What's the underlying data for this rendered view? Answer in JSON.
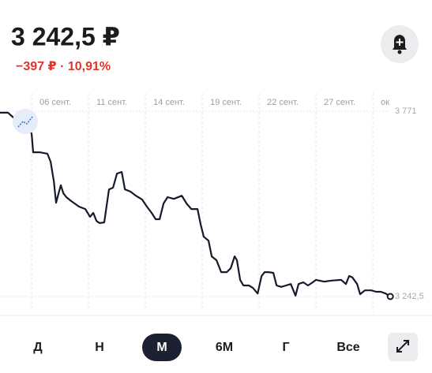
{
  "header": {
    "price": "3 242,5 ₽",
    "change": "−397 ₽ · 10,91%"
  },
  "chart_data": {
    "type": "line",
    "x": [
      -0.67,
      -0.25,
      0.08,
      0.33,
      0.58,
      0.83,
      1,
      1.08,
      1.42,
      1.83,
      2,
      2.17,
      2.29,
      2.42,
      2.54,
      2.67,
      2.83,
      3.08,
      3.5,
      3.83,
      4.08,
      4.25,
      4.42,
      4.58,
      4.83,
      4.96,
      5.08,
      5.29,
      5.5,
      5.75,
      5.92,
      6.21,
      6.5,
      6.83,
      7.08,
      7.33,
      7.54,
      7.75,
      7.96,
      8.17,
      8.5,
      8.92,
      9.17,
      9.42,
      9.75,
      9.92,
      10.08,
      10.33,
      10.5,
      10.75,
      11,
      11.29,
      11.5,
      11.71,
      11.83,
      12,
      12.17,
      12.46,
      12.67,
      12.92,
      13.13,
      13.29,
      13.5,
      13.75,
      13.92,
      14.17,
      14.42,
      14.67,
      14.92,
      15.08,
      15.33,
      15.58,
      15.83,
      16,
      16.42,
      16.83,
      17.33,
      17.58,
      17.75,
      17.92,
      18.17,
      18.33,
      18.58,
      18.92,
      19.17,
      19.42,
      19.67,
      19.92
    ],
    "series": [
      {
        "color": "#161b2b",
        "values": [
          3767,
          3767,
          3751,
          3740,
          3744,
          3733,
          3706,
          3654,
          3654,
          3650,
          3627,
          3571,
          3510,
          3537,
          3560,
          3537,
          3526,
          3515,
          3499,
          3492,
          3470,
          3481,
          3458,
          3452,
          3454,
          3503,
          3548,
          3553,
          3593,
          3598,
          3548,
          3542,
          3530,
          3519,
          3499,
          3481,
          3463,
          3463,
          3508,
          3526,
          3521,
          3530,
          3508,
          3492,
          3492,
          3447,
          3413,
          3402,
          3357,
          3346,
          3312,
          3312,
          3323,
          3357,
          3346,
          3290,
          3274,
          3274,
          3267,
          3251,
          3301,
          3312,
          3312,
          3310,
          3274,
          3270,
          3274,
          3278,
          3245,
          3278,
          3283,
          3274,
          3283,
          3290,
          3285,
          3288,
          3290,
          3278,
          3301,
          3297,
          3278,
          3249,
          3260,
          3260,
          3256,
          3256,
          3251,
          3242.5
        ]
      }
    ],
    "xlim": [
      -0.67,
      22.12
    ],
    "xticks": [
      {
        "value": 1,
        "label": "06 сент."
      },
      {
        "value": 4,
        "label": "11 сент."
      },
      {
        "value": 7,
        "label": "14 сент."
      },
      {
        "value": 10,
        "label": "19 сент."
      },
      {
        "value": 13,
        "label": "22 сент."
      },
      {
        "value": 16,
        "label": "27 сент."
      },
      {
        "value": 19,
        "label": "ок"
      }
    ],
    "ylim": [
      3193,
      3823
    ],
    "yticks": [
      {
        "value": 3771,
        "label": "3 771"
      },
      {
        "value": 3242.5,
        "label": "3 242,5"
      }
    ],
    "grid": true
  },
  "periods": {
    "options": [
      "Д",
      "Н",
      "М",
      "6М",
      "Г",
      "Все"
    ],
    "selected": "М"
  }
}
